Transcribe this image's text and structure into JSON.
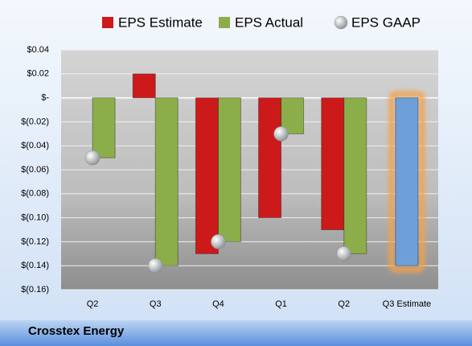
{
  "chart_data": {
    "type": "bar",
    "title": "Crosstex Energy",
    "categories": [
      "Q2",
      "Q3",
      "Q4",
      "Q1",
      "Q2",
      "Q3 Estimate"
    ],
    "series": [
      {
        "name": "EPS Estimate",
        "color": "#cc1a1a",
        "highlight_color": "#6f9fd8",
        "values": [
          null,
          0.02,
          -0.13,
          -0.1,
          -0.11,
          -0.14
        ]
      },
      {
        "name": "EPS Actual",
        "color": "#8cae4a",
        "values": [
          -0.05,
          -0.14,
          -0.12,
          -0.03,
          -0.13,
          null
        ]
      },
      {
        "name": "EPS GAAP",
        "type": "scatter",
        "color": "#b0b4b8",
        "values": [
          -0.05,
          -0.14,
          -0.12,
          -0.03,
          -0.13,
          null
        ]
      }
    ],
    "ylim": [
      -0.16,
      0.04
    ],
    "yticks": [
      {
        "value": 0.04,
        "label": "$0.04"
      },
      {
        "value": 0.02,
        "label": "$0.02"
      },
      {
        "value": 0,
        "label": "$-"
      },
      {
        "value": -0.02,
        "label": "$(0.02)"
      },
      {
        "value": -0.04,
        "label": "$(0.04)"
      },
      {
        "value": -0.06,
        "label": "$(0.06)"
      },
      {
        "value": -0.08,
        "label": "$(0.08)"
      },
      {
        "value": -0.1,
        "label": "$(0.10)"
      },
      {
        "value": -0.12,
        "label": "$(0.12)"
      },
      {
        "value": -0.14,
        "label": "$(0.14)"
      },
      {
        "value": -0.16,
        "label": "$(0.16)"
      }
    ],
    "grid": true
  }
}
